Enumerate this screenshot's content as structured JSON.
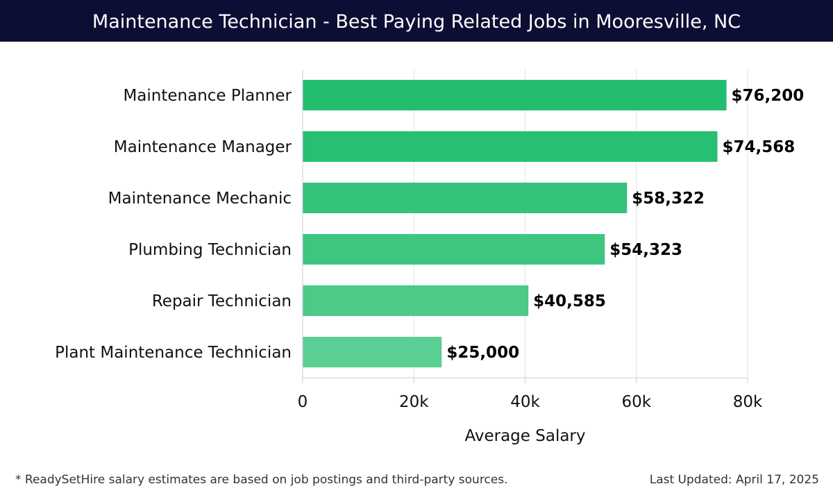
{
  "header": {
    "title": "Maintenance Technician - Best Paying Related Jobs in Mooresville, NC"
  },
  "chart_data": {
    "type": "bar",
    "orientation": "horizontal",
    "title": "Maintenance Technician - Best Paying Related Jobs in Mooresville, NC",
    "xlabel": "Average Salary",
    "ylabel": "",
    "categories": [
      "Maintenance Planner",
      "Maintenance Manager",
      "Maintenance Mechanic",
      "Plumbing Technician",
      "Repair Technician",
      "Plant Maintenance Technician"
    ],
    "values": [
      76200,
      74568,
      58322,
      54323,
      40585,
      25000
    ],
    "value_labels": [
      "$76,200",
      "$74,568",
      "$58,322",
      "$54,323",
      "$40,585",
      "$25,000"
    ],
    "xlim": [
      0,
      80000
    ],
    "x_ticks": [
      0,
      20000,
      40000,
      60000,
      80000
    ],
    "x_tick_labels": [
      "0",
      "20k",
      "40k",
      "60k",
      "80k"
    ],
    "grid": true,
    "bar_colors": [
      "#22bd6f",
      "#27bf73",
      "#35c27b",
      "#3ec680",
      "#4bca88",
      "#5bcf94"
    ]
  },
  "footer": {
    "note": "* ReadySetHire salary estimates are based on job postings and third-party sources.",
    "updated": "Last Updated: April 17, 2025"
  }
}
